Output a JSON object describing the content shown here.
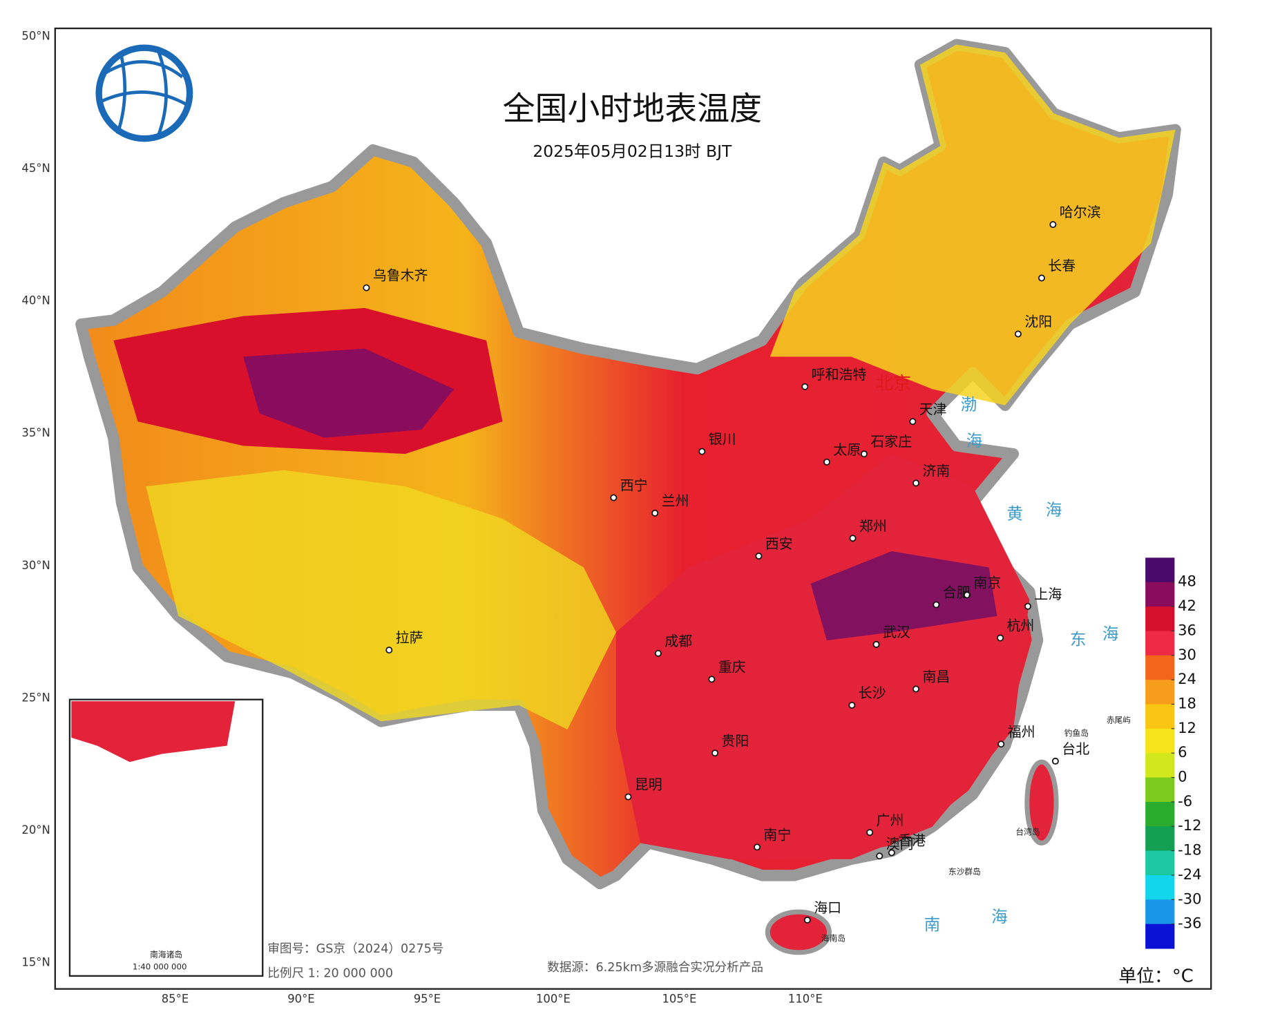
{
  "header": {
    "title": "全国小时地表温度",
    "subtitle": "2025年05月02日13时 BJT"
  },
  "lat_labels": [
    "50°N",
    "45°N",
    "40°N",
    "35°N",
    "30°N",
    "25°N",
    "20°N",
    "15°N"
  ],
  "lon_labels": [
    "85°E",
    "90°E",
    "95°E",
    "100°E",
    "105°E",
    "110°E"
  ],
  "cities": [
    "乌鲁木齐",
    "拉萨",
    "西宁",
    "兰州",
    "成都",
    "重庆",
    "贵阳",
    "昆明",
    "南宁",
    "广州",
    "香港",
    "澳门",
    "海口",
    "长沙",
    "南昌",
    "福州",
    "台北",
    "杭州",
    "上海",
    "南京",
    "合肥",
    "武汉",
    "郑州",
    "西安",
    "太原",
    "石家庄",
    "济南",
    "天津",
    "北京",
    "呼和浩特",
    "银川",
    "哈尔滨",
    "长春",
    "沈阳"
  ],
  "seas": [
    "渤",
    "海",
    "黄",
    "海",
    "东",
    "海",
    "南",
    "海"
  ],
  "islands": [
    "钓鱼岛",
    "赤尾屿",
    "台湾岛",
    "东沙群岛",
    "海南岛"
  ],
  "inset": {
    "title": "南海诸岛",
    "scale": "1:40 000 000"
  },
  "footer": {
    "approval": "审图号：GS京（2024）0275号",
    "scale": "比例尺 1: 20 000 000",
    "source": "数据源：6.25km多源融合实况分析产品"
  },
  "legend": {
    "ticks": [
      48,
      42,
      36,
      30,
      24,
      18,
      12,
      6,
      0,
      -6,
      -12,
      -18,
      -24,
      -30,
      -36
    ],
    "colors": [
      "#4a0a6c",
      "#8a0c5c",
      "#d5102c",
      "#ee2a44",
      "#f2661a",
      "#f69e1c",
      "#f8c612",
      "#f5e41a",
      "#d2e81c",
      "#7cca1c",
      "#2aac2c",
      "#14a052",
      "#1cc8a2",
      "#12d6ea",
      "#1a96e6",
      "#0a12d6"
    ],
    "unit": "单位：°C"
  }
}
